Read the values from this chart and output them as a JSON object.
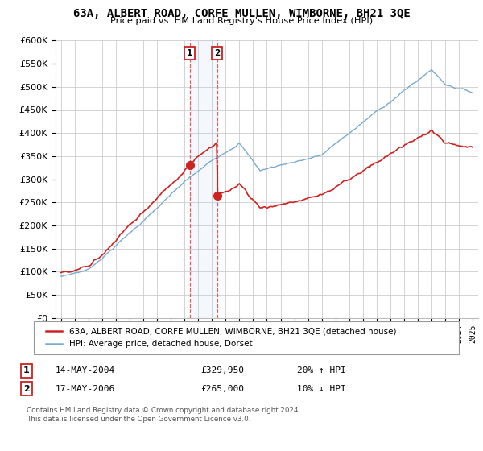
{
  "title": "63A, ALBERT ROAD, CORFE MULLEN, WIMBORNE, BH21 3QE",
  "subtitle": "Price paid vs. HM Land Registry's House Price Index (HPI)",
  "legend_line1": "63A, ALBERT ROAD, CORFE MULLEN, WIMBORNE, BH21 3QE (detached house)",
  "legend_line2": "HPI: Average price, detached house, Dorset",
  "ylim": [
    0,
    600000
  ],
  "transaction1_label": "1",
  "transaction1_date": "14-MAY-2004",
  "transaction1_price": "£329,950",
  "transaction1_hpi": "20% ↑ HPI",
  "transaction1_x": 2004.37,
  "transaction1_y": 329950,
  "transaction2_label": "2",
  "transaction2_date": "17-MAY-2006",
  "transaction2_price": "£265,000",
  "transaction2_hpi": "10% ↓ HPI",
  "transaction2_x": 2006.37,
  "transaction2_y": 265000,
  "hpi_color": "#7aaad0",
  "price_color": "#cc2222",
  "footer": "Contains HM Land Registry data © Crown copyright and database right 2024.\nThis data is licensed under the Open Government Licence v3.0.",
  "xlim_left": 1994.6,
  "xlim_right": 2025.4
}
